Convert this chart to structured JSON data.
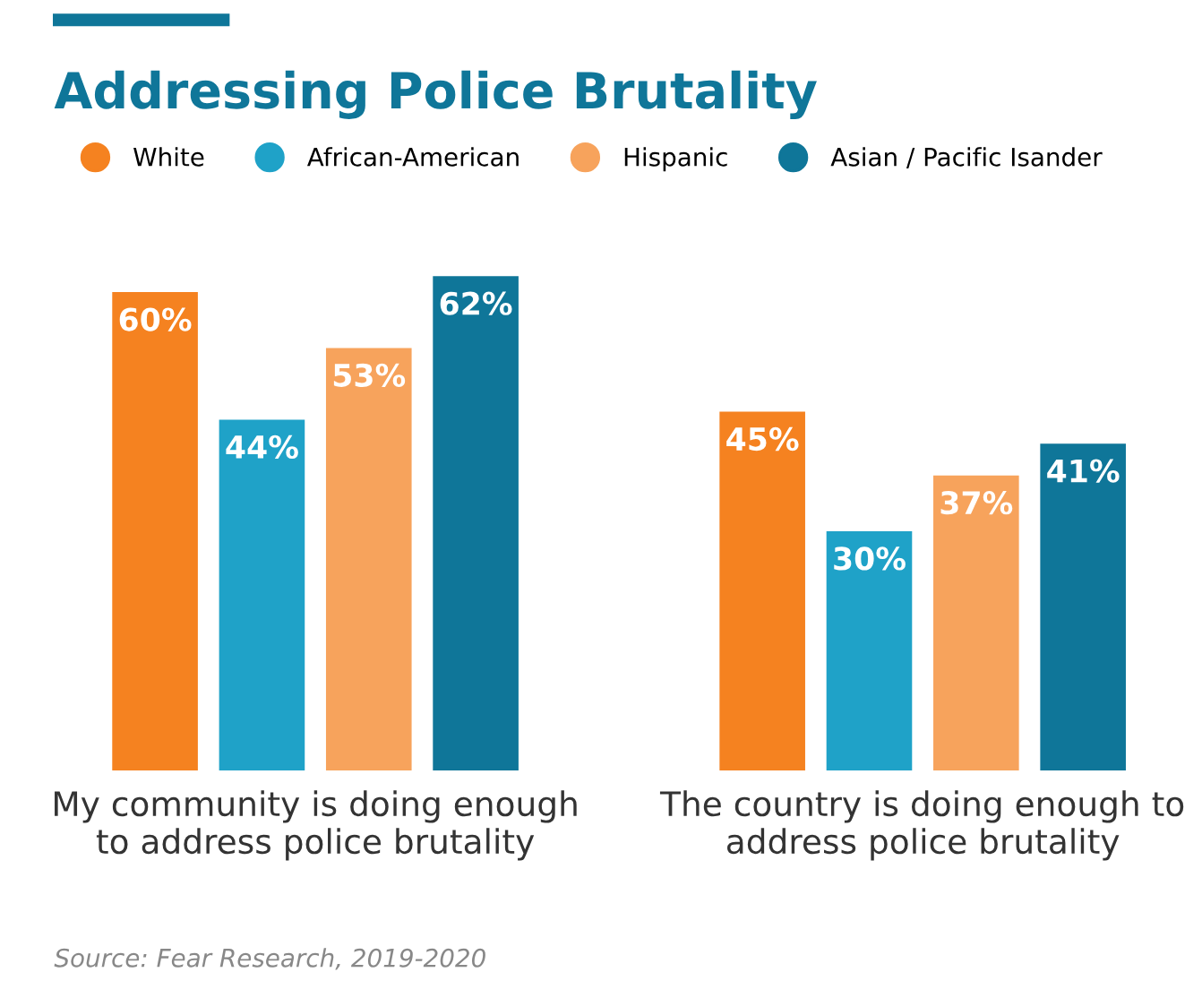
{
  "chart_data": {
    "type": "bar",
    "title": "Addressing Police Brutality",
    "categories": [
      "My community is doing enough\nto address police brutality",
      "The country is doing enough to\naddress police brutality"
    ],
    "series": [
      {
        "name": "White",
        "color": "#f58220",
        "values": [
          60,
          45
        ],
        "value_labels": [
          "60%",
          "45%"
        ]
      },
      {
        "name": "African-American",
        "color": "#1fa2c8",
        "values": [
          44,
          30
        ],
        "value_labels": [
          "44%",
          "30%"
        ]
      },
      {
        "name": "Hispanic",
        "color": "#f7a35c",
        "values": [
          53,
          37
        ],
        "value_labels": [
          "53%",
          "37%"
        ]
      },
      {
        "name": "Asian / Pacific Isander",
        "color": "#0f7699",
        "values": [
          62,
          41
        ],
        "value_labels": [
          "62%",
          "41%"
        ]
      }
    ],
    "legend": "top left",
    "grid": false,
    "annotations": [
      "Source: Fear Research, 2019-2020"
    ]
  }
}
